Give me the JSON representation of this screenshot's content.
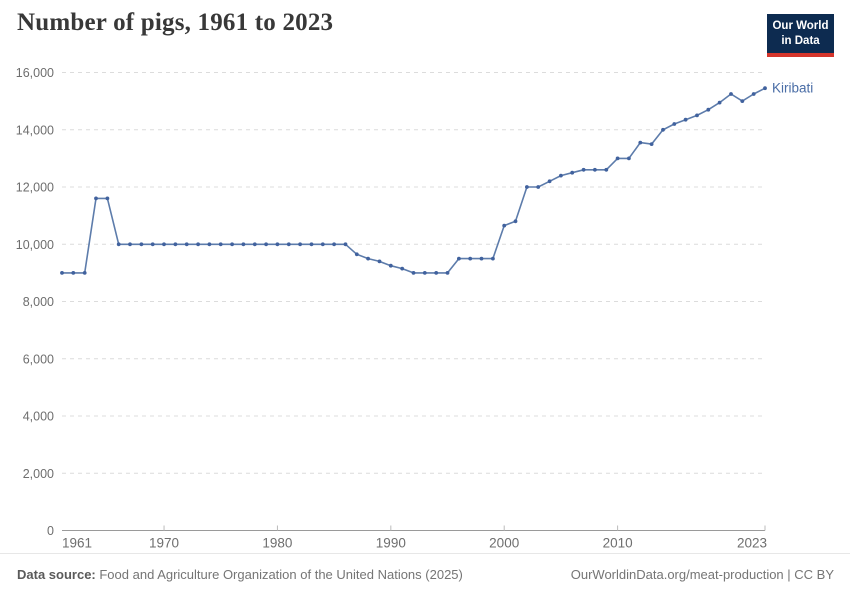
{
  "header": {
    "title": "Number of pigs, 1961 to 2023",
    "logo": {
      "line1": "Our World",
      "line2": "in Data"
    }
  },
  "chart_data": {
    "type": "line",
    "title": "Number of pigs, 1961 to 2023",
    "xlabel": "",
    "ylabel": "",
    "xlim": [
      1961,
      2023
    ],
    "ylim": [
      0,
      16000
    ],
    "x_ticks": [
      1961,
      1970,
      1980,
      1990,
      2000,
      2010,
      2023
    ],
    "y_ticks": [
      0,
      2000,
      4000,
      6000,
      8000,
      10000,
      12000,
      14000,
      16000
    ],
    "grid": "horizontal-dashed",
    "legend_position": "end-of-line-label",
    "series": [
      {
        "name": "Kiribati",
        "line_color": "#5d7cab",
        "marker_color": "#41629e",
        "label_color": "#4a6da6",
        "x": [
          1961,
          1962,
          1963,
          1964,
          1965,
          1966,
          1967,
          1968,
          1969,
          1970,
          1971,
          1972,
          1973,
          1974,
          1975,
          1976,
          1977,
          1978,
          1979,
          1980,
          1981,
          1982,
          1983,
          1984,
          1985,
          1986,
          1987,
          1988,
          1989,
          1990,
          1991,
          1992,
          1993,
          1994,
          1995,
          1996,
          1997,
          1998,
          1999,
          2000,
          2001,
          2002,
          2003,
          2004,
          2005,
          2006,
          2007,
          2008,
          2009,
          2010,
          2011,
          2012,
          2013,
          2014,
          2015,
          2016,
          2017,
          2018,
          2019,
          2020,
          2021,
          2022,
          2023
        ],
        "values": [
          9000,
          9000,
          9000,
          11600,
          11600,
          10000,
          10000,
          10000,
          10000,
          10000,
          10000,
          10000,
          10000,
          10000,
          10000,
          10000,
          10000,
          10000,
          10000,
          10000,
          10000,
          10000,
          10000,
          10000,
          10000,
          10000,
          9650,
          9500,
          9400,
          9250,
          9150,
          9000,
          9000,
          9000,
          9000,
          9500,
          9500,
          9500,
          9500,
          10650,
          10800,
          12000,
          12000,
          12200,
          12400,
          12500,
          12600,
          12600,
          12600,
          13000,
          13000,
          13550,
          13500,
          14000,
          14200,
          14350,
          14500,
          14700,
          14950,
          15250,
          15000,
          15250,
          15450
        ]
      }
    ]
  },
  "footer": {
    "source_label": "Data source:",
    "source_text": " Food and Agriculture Organization of the United Nations (2025)",
    "attribution": "OurWorldinData.org/meat-production | CC BY"
  },
  "colors": {
    "title": "#383838",
    "grid": "#dcdcdc",
    "axis": "#9a9a9a",
    "tick": "#bbbbbb",
    "tick_text": "#6e6e6e",
    "logo_bg": "#0d2b50",
    "logo_red": "#d5352b",
    "footer_text": "#757575"
  }
}
